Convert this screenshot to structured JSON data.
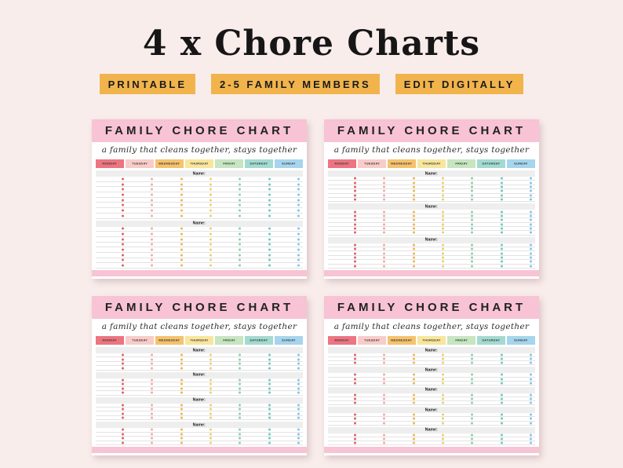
{
  "page": {
    "background": "#f9edec"
  },
  "header": {
    "title": "4 x Chore Charts",
    "badges": [
      "PRINTABLE",
      "2-5 FAMILY MEMBERS",
      "EDIT DIGITALLY"
    ],
    "badge_color": "#f1b44c"
  },
  "chart_template": {
    "title": "FAMILY CHORE CHART",
    "subtitle": "a family that cleans together, stays together",
    "name_label": "Name:",
    "header_color": "#f8c3d4",
    "footer_color": "#f8c3d4",
    "days": [
      {
        "label": "MONDAY",
        "color": "#ec7581",
        "dot_color": "#db6168"
      },
      {
        "label": "TUESDAY",
        "color": "#f8ccc8",
        "dot_color": "#f0aba6"
      },
      {
        "label": "WEDNESDAY",
        "color": "#f5c26d",
        "dot_color": "#ecb550"
      },
      {
        "label": "THURSDAY",
        "color": "#f7e69c",
        "dot_color": "#e9cf6d"
      },
      {
        "label": "FRIDAY",
        "color": "#c6e5c0",
        "dot_color": "#8fceaa"
      },
      {
        "label": "SATURDAY",
        "color": "#a3dad1",
        "dot_color": "#6fc7bd"
      },
      {
        "label": "SUNDAY",
        "color": "#a6d5ed",
        "dot_color": "#83c3e5"
      }
    ]
  },
  "charts": [
    {
      "position": "top-left",
      "members": 2,
      "rows_per_member": 8
    },
    {
      "position": "top-right",
      "members": 3,
      "rows_per_member": 6
    },
    {
      "position": "bottom-left",
      "members": 4,
      "rows_per_member": 4
    },
    {
      "position": "bottom-right",
      "members": 5,
      "rows_per_member": 3
    }
  ]
}
